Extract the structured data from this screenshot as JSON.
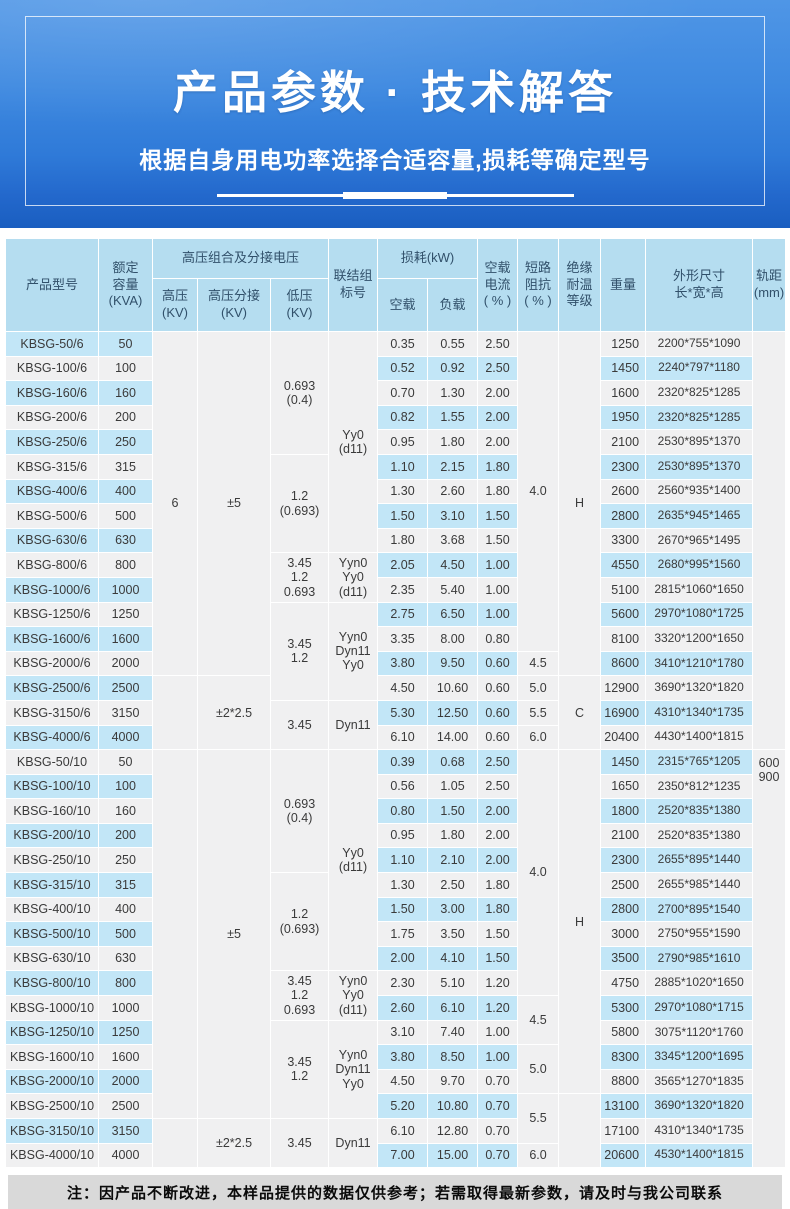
{
  "banner": {
    "title": "产品参数 · 技术解答",
    "subtitle": "根据自身用电功率选择合适容量,损耗等确定型号"
  },
  "note": "注：因产品不断改进，本样品提供的数据仅供参考；若需取得最新参数，请及时与我公司联系",
  "table": {
    "head": {
      "row1": [
        {
          "label": "产品型号",
          "rs": 2
        },
        {
          "label": "额定\n容量\n(KVA)",
          "rs": 2
        },
        {
          "label": "高压组合及分接电压",
          "cs": 3
        },
        {
          "label": "联结组\n标号",
          "rs": 2
        },
        {
          "label": "损耗(kW)",
          "cs": 2
        },
        {
          "label": "空载\n电流\n( % )",
          "rs": 2
        },
        {
          "label": "短路\n阻抗\n( % )",
          "rs": 2
        },
        {
          "label": "绝缘\n耐温\n等级",
          "rs": 2
        },
        {
          "label": "重量",
          "rs": 2
        },
        {
          "label": "外形尺寸\n长*宽*高",
          "rs": 2
        },
        {
          "label": "轨距\n(mm)",
          "rs": 2
        }
      ],
      "row2": [
        {
          "label": "高压\n(KV)"
        },
        {
          "label": "高压分接\n(KV)"
        },
        {
          "label": "低压\n(KV)"
        },
        {
          "label": "空载"
        },
        {
          "label": "负载"
        }
      ]
    },
    "rows": [
      [
        "KBSG-50/6",
        "50",
        "0.35",
        "0.55",
        "2.50",
        "1250",
        "2200*755*1090"
      ],
      [
        "KBSG-100/6",
        "100",
        "0.52",
        "0.92",
        "2.50",
        "1450",
        "2240*797*1180"
      ],
      [
        "KBSG-160/6",
        "160",
        "0.70",
        "1.30",
        "2.00",
        "1600",
        "2320*825*1285"
      ],
      [
        "KBSG-200/6",
        "200",
        "0.82",
        "1.55",
        "2.00",
        "1950",
        "2320*825*1285"
      ],
      [
        "KBSG-250/6",
        "250",
        "0.95",
        "1.80",
        "2.00",
        "2100",
        "2530*895*1370"
      ],
      [
        "KBSG-315/6",
        "315",
        "1.10",
        "2.15",
        "1.80",
        "2300",
        "2530*895*1370"
      ],
      [
        "KBSG-400/6",
        "400",
        "1.30",
        "2.60",
        "1.80",
        "2600",
        "2560*935*1400"
      ],
      [
        "KBSG-500/6",
        "500",
        "1.50",
        "3.10",
        "1.50",
        "2800",
        "2635*945*1465"
      ],
      [
        "KBSG-630/6",
        "630",
        "1.80",
        "3.68",
        "1.50",
        "3300",
        "2670*965*1495"
      ],
      [
        "KBSG-800/6",
        "800",
        "2.05",
        "4.50",
        "1.00",
        "4550",
        "2680*995*1560"
      ],
      [
        "KBSG-1000/6",
        "1000",
        "2.35",
        "5.40",
        "1.00",
        "5100",
        "2815*1060*1650"
      ],
      [
        "KBSG-1250/6",
        "1250",
        "2.75",
        "6.50",
        "1.00",
        "5600",
        "2970*1080*1725"
      ],
      [
        "KBSG-1600/6",
        "1600",
        "3.35",
        "8.00",
        "0.80",
        "8100",
        "3320*1200*1650"
      ],
      [
        "KBSG-2000/6",
        "2000",
        "3.80",
        "9.50",
        "0.60",
        "8600",
        "3410*1210*1780"
      ],
      [
        "KBSG-2500/6",
        "2500",
        "4.50",
        "10.60",
        "0.60",
        "12900",
        "3690*1320*1820"
      ],
      [
        "KBSG-3150/6",
        "3150",
        "5.30",
        "12.50",
        "0.60",
        "16900",
        "4310*1340*1735"
      ],
      [
        "KBSG-4000/6",
        "4000",
        "6.10",
        "14.00",
        "0.60",
        "20400",
        "4430*1400*1815"
      ],
      [
        "KBSG-50/10",
        "50",
        "0.39",
        "0.68",
        "2.50",
        "1450",
        "2315*765*1205"
      ],
      [
        "KBSG-100/10",
        "100",
        "0.56",
        "1.05",
        "2.50",
        "1650",
        "2350*812*1235"
      ],
      [
        "KBSG-160/10",
        "160",
        "0.80",
        "1.50",
        "2.00",
        "1800",
        "2520*835*1380"
      ],
      [
        "KBSG-200/10",
        "200",
        "0.95",
        "1.80",
        "2.00",
        "2100",
        "2520*835*1380"
      ],
      [
        "KBSG-250/10",
        "250",
        "1.10",
        "2.10",
        "2.00",
        "2300",
        "2655*895*1440"
      ],
      [
        "KBSG-315/10",
        "315",
        "1.30",
        "2.50",
        "1.80",
        "2500",
        "2655*985*1440"
      ],
      [
        "KBSG-400/10",
        "400",
        "1.50",
        "3.00",
        "1.80",
        "2800",
        "2700*895*1540"
      ],
      [
        "KBSG-500/10",
        "500",
        "1.75",
        "3.50",
        "1.50",
        "3000",
        "2750*955*1590"
      ],
      [
        "KBSG-630/10",
        "630",
        "2.00",
        "4.10",
        "1.50",
        "3500",
        "2790*985*1610"
      ],
      [
        "KBSG-800/10",
        "800",
        "2.30",
        "5.10",
        "1.20",
        "4750",
        "2885*1020*1650"
      ],
      [
        "KBSG-1000/10",
        "1000",
        "2.60",
        "6.10",
        "1.20",
        "5300",
        "2970*1080*1715"
      ],
      [
        "KBSG-1250/10",
        "1250",
        "3.10",
        "7.40",
        "1.00",
        "5800",
        "3075*1120*1760"
      ],
      [
        "KBSG-1600/10",
        "1600",
        "3.80",
        "8.50",
        "1.00",
        "8300",
        "3345*1200*1695"
      ],
      [
        "KBSG-2000/10",
        "2000",
        "4.50",
        "9.70",
        "0.70",
        "8800",
        "3565*1270*1835"
      ],
      [
        "KBSG-2500/10",
        "2500",
        "5.20",
        "10.80",
        "0.70",
        "13100",
        "3690*1320*1820"
      ],
      [
        "KBSG-3150/10",
        "3150",
        "6.10",
        "12.80",
        "0.70",
        "17100",
        "4310*1340*1735"
      ],
      [
        "KBSG-4000/10",
        "4000",
        "7.00",
        "15.00",
        "0.70",
        "20600",
        "4530*1400*1815"
      ]
    ],
    "merges": {
      "hv": [
        {
          "r": 1,
          "n": 14,
          "t": "6"
        },
        {
          "r": 15,
          "n": 3,
          "t": ""
        },
        {
          "r": 18,
          "n": 15,
          "t": ""
        },
        {
          "r": 33,
          "n": 2,
          "t": ""
        }
      ],
      "tap": [
        {
          "r": 1,
          "n": 14,
          "t": "±5"
        },
        {
          "r": 15,
          "n": 3,
          "t": "±2*2.5"
        },
        {
          "r": 18,
          "n": 15,
          "t": "±5"
        },
        {
          "r": 33,
          "n": 2,
          "t": "±2*2.5"
        }
      ],
      "lv": [
        {
          "r": 1,
          "n": 5,
          "t": "0.693\n(0.4)"
        },
        {
          "r": 6,
          "n": 4,
          "t": "1.2\n(0.693)"
        },
        {
          "r": 10,
          "n": 2,
          "t": "3.45\n1.2\n0.693"
        },
        {
          "r": 12,
          "n": 4,
          "t": "3.45\n1.2"
        },
        {
          "r": 16,
          "n": 2,
          "t": "3.45"
        },
        {
          "r": 18,
          "n": 5,
          "t": "0.693\n(0.4)"
        },
        {
          "r": 23,
          "n": 4,
          "t": "1.2\n(0.693)"
        },
        {
          "r": 27,
          "n": 2,
          "t": "3.45\n1.2\n0.693"
        },
        {
          "r": 29,
          "n": 4,
          "t": "3.45\n1.2"
        },
        {
          "r": 33,
          "n": 2,
          "t": "3.45"
        }
      ],
      "vector": [
        {
          "r": 1,
          "n": 9,
          "t": "Yy0\n(d11)"
        },
        {
          "r": 10,
          "n": 2,
          "t": "Yyn0\nYy0\n(d11)"
        },
        {
          "r": 12,
          "n": 4,
          "t": "Yyn0\nDyn11\nYy0"
        },
        {
          "r": 16,
          "n": 2,
          "t": "Dyn11"
        },
        {
          "r": 18,
          "n": 9,
          "t": "Yy0\n(d11)"
        },
        {
          "r": 27,
          "n": 2,
          "t": "Yyn0\nYy0\n(d11)"
        },
        {
          "r": 29,
          "n": 4,
          "t": "Yyn0\nDyn11\nYy0"
        },
        {
          "r": 33,
          "n": 2,
          "t": "Dyn11"
        }
      ],
      "impedance": [
        {
          "r": 1,
          "n": 13,
          "t": "4.0"
        },
        {
          "r": 14,
          "n": 1,
          "t": "4.5"
        },
        {
          "r": 15,
          "n": 1,
          "t": "5.0"
        },
        {
          "r": 16,
          "n": 1,
          "t": "5.5"
        },
        {
          "r": 17,
          "n": 1,
          "t": "6.0"
        },
        {
          "r": 18,
          "n": 10,
          "t": "4.0"
        },
        {
          "r": 28,
          "n": 2,
          "t": "4.5"
        },
        {
          "r": 30,
          "n": 2,
          "t": "5.0"
        },
        {
          "r": 32,
          "n": 2,
          "t": "5.5"
        },
        {
          "r": 34,
          "n": 1,
          "t": "6.0"
        }
      ],
      "insulation": [
        {
          "r": 1,
          "n": 14,
          "t": "H"
        },
        {
          "r": 15,
          "n": 3,
          "t": "C"
        },
        {
          "r": 18,
          "n": 14,
          "t": "H"
        },
        {
          "r": 32,
          "n": 3,
          "t": ""
        }
      ],
      "gauge": [
        {
          "r": 1,
          "n": 17,
          "t": ""
        },
        {
          "r": 18,
          "n": 17,
          "t": "600\n900",
          "va": "top"
        }
      ]
    }
  }
}
